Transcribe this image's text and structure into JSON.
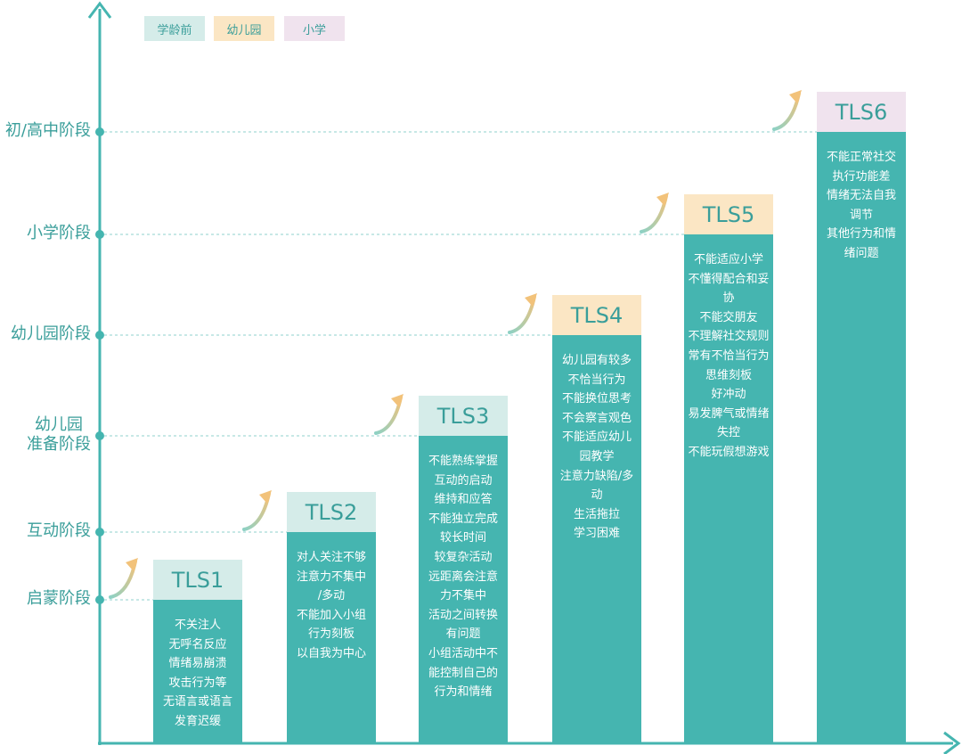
{
  "colors": {
    "axis": "#45b5b0",
    "axis_dot": "#45b5b0",
    "guide": "#8fd0cc",
    "bar": "#45b5b0",
    "legend_preschool": "#d5ece9",
    "legend_kindergarten": "#fbe6c4",
    "legend_primary": "#f0e3ee",
    "arrow_start": "#8ed1c4",
    "arrow_end": "#f2c27a"
  },
  "legend": [
    {
      "label": "学龄前",
      "color": "#d5ece9"
    },
    {
      "label": "幼儿园",
      "color": "#fbe6c4"
    },
    {
      "label": "小学",
      "color": "#f0e3ee"
    }
  ],
  "stages": [
    {
      "lines": [
        "启蒙阶段"
      ]
    },
    {
      "lines": [
        "互动阶段"
      ]
    },
    {
      "lines": [
        "幼儿园",
        "准备阶段"
      ]
    },
    {
      "lines": [
        "幼儿园阶段"
      ]
    },
    {
      "lines": [
        "小学阶段"
      ]
    },
    {
      "lines": [
        "初/高中阶段"
      ]
    }
  ],
  "levels": [
    {
      "name": "TLS1",
      "stage_index": 0,
      "head_color": "#d5ece9",
      "lines": [
        "不关注人",
        "无呼名反应",
        "情绪易崩溃",
        "攻击行为等",
        "无语言或语言",
        "发育迟缓"
      ]
    },
    {
      "name": "TLS2",
      "stage_index": 1,
      "head_color": "#d5ece9",
      "lines": [
        "对人关注不够",
        "注意力不集中",
        "/多动",
        "不能加入小组",
        "行为刻板",
        "以自我为中心"
      ]
    },
    {
      "name": "TLS3",
      "stage_index": 2,
      "head_color": "#d5ece9",
      "lines": [
        "不能熟练掌握",
        "互动的启动",
        "维持和应答",
        "不能独立完成",
        "较长时间",
        "较复杂活动",
        "远距离会注意",
        "力不集中",
        "活动之间转换",
        "有问题",
        "小组活动中不",
        "能控制自己的",
        "行为和情绪"
      ]
    },
    {
      "name": "TLS4",
      "stage_index": 3,
      "head_color": "#fbe6c4",
      "lines": [
        "幼儿园有较多",
        "不恰当行为",
        "不能换位思考",
        "不会察言观色",
        "不能适应幼儿",
        "园教学",
        "注意力缺陷/多",
        "动",
        "生活拖拉",
        "学习困难"
      ]
    },
    {
      "name": "TLS5",
      "stage_index": 4,
      "head_color": "#fbe6c4",
      "lines": [
        "不能适应小学",
        "不懂得配合和妥",
        "协",
        "不能交朋友",
        "不理解社交规则",
        "常有不恰当行为",
        "思维刻板",
        "好冲动",
        "易发脾气或情绪",
        "失控",
        "不能玩假想游戏"
      ]
    },
    {
      "name": "TLS6",
      "stage_index": 5,
      "head_color": "#f0e3ee",
      "lines": [
        "不能正常社交",
        "执行功能差",
        "情绪无法自我",
        "调节",
        "其他行为和情",
        "绪问题"
      ]
    }
  ]
}
